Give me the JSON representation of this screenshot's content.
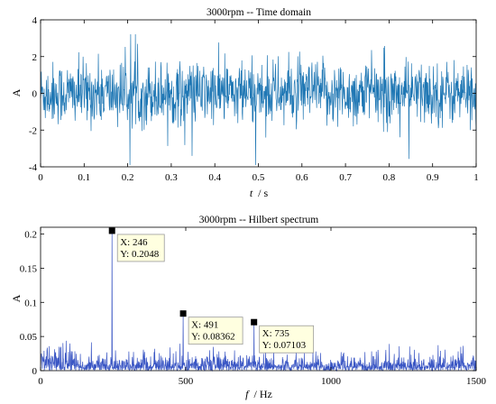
{
  "chart_data": [
    {
      "type": "line",
      "title": "3000rpm -- Time domain",
      "xlabel": "t / s",
      "xlabel_var": "t",
      "xlabel_unit": "/ s",
      "ylabel": "A",
      "xlim": [
        0,
        1
      ],
      "ylim": [
        -4,
        4
      ],
      "x_ticks": [
        "0",
        "0.1",
        "0.2",
        "0.3",
        "0.4",
        "0.5",
        "0.6",
        "0.7",
        "0.8",
        "0.9",
        "1"
      ],
      "y_ticks": [
        "-4",
        "-2",
        "0",
        "2",
        "4"
      ],
      "color": "#1f77b4",
      "grid": false,
      "signal": {
        "description_samples": 1200,
        "typical_amplitude": 1.3,
        "peak_amplitude": 3.9
      }
    },
    {
      "type": "line",
      "title": "3000rpm -- Hilbert spectrum",
      "xlabel": "f / Hz",
      "xlabel_var": "f",
      "xlabel_unit": "/ Hz",
      "ylabel": "A",
      "xlim": [
        0,
        1500
      ],
      "ylim": [
        0,
        0.21
      ],
      "x_ticks": [
        "0",
        "500",
        "1000",
        "1500"
      ],
      "y_ticks": [
        "0",
        "0.05",
        "0.1",
        "0.15",
        "0.2"
      ],
      "color": "#3a56c4",
      "grid": false,
      "peaks": [
        {
          "x": 246,
          "y": 0.2048,
          "label_x": "X: 246",
          "label_y": "Y: 0.2048"
        },
        {
          "x": 491,
          "y": 0.08362,
          "label_x": "X: 491",
          "label_y": "Y: 0.08362"
        },
        {
          "x": 735,
          "y": 0.07103,
          "label_x": "X: 735",
          "label_y": "Y: 0.07103"
        }
      ],
      "noise_floor": 0.012
    }
  ],
  "colors": {
    "time_signal": "#1f77b4",
    "spectrum_line": "#3a56c4",
    "datatip_bg": "#ffffe0",
    "datatip_border": "#999999"
  }
}
